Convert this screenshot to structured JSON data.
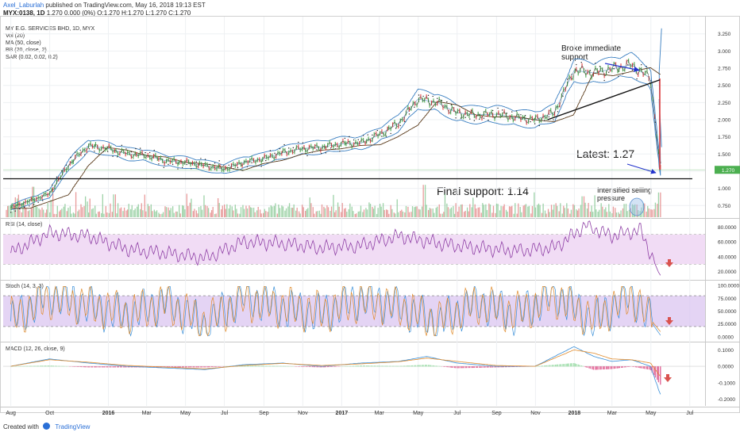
{
  "header": {
    "author": "Axel_Laburlah",
    "published_text": "published on TradingView.com, May 16, 2018 19:13 EST",
    "symbol": "MYX:0138, 1D",
    "ohlc": "1.270 0.000 (0%) O:1.270 H:1.270 L:1.270 C:1.270"
  },
  "footer": {
    "created_with": "Created with",
    "brand": "TradingView"
  },
  "colors": {
    "price_line": "#3a3a3a",
    "candle_up": "#4caf50",
    "candle_down": "#e04040",
    "bollinger": "#3a7fc1",
    "ma": "#5a3a1a",
    "sar": "#222222",
    "rsi_line": "#8e3fa5",
    "rsi_band": "#f1dcf5",
    "stoch_k": "#3a8fd8",
    "stoch_d": "#e08a2a",
    "stoch_band": "#d9c2f0",
    "macd_line": "#3a8fd8",
    "signal_line": "#e08a2a",
    "hist_pos": "#a5e0b0",
    "hist_neg": "#e26b9a",
    "annotation_blue": "#2233cc",
    "arrow_red": "#d9534f",
    "last_price_tag": "#4caf50",
    "vol_up": "#7cc38a",
    "vol_down": "#e07a7a"
  },
  "price_panel": {
    "indicators": [
      "MY E.G. SERVICES BHD, 1D, MYX",
      "Vol (20)",
      "MA (50, close)",
      "BB (20, close, 2)",
      "SAR (0.02, 0.02, 0.2)"
    ],
    "last_price_label": "1.270"
  },
  "rsi_panel": {
    "title": "RSI (14, close)"
  },
  "stoch_panel": {
    "title": "Stoch (14, 3, 3)"
  },
  "macd_panel": {
    "title": "MACD (12, 26, close, 9)"
  },
  "annotations": {
    "final_support": "Final support: 1.14",
    "latest": "Latest: 1.27",
    "broke_line1": "Broke immediate",
    "broke_line2": "support",
    "intensified_line1": "Intensified selling",
    "intensified_line2": "pressure"
  },
  "chart_data": [
    {
      "type": "line",
      "title": "MY E.G. SERVICES BHD, 1D, MYX",
      "x_type": "date",
      "y_scale": "linear",
      "ylim": [
        0.58,
        3.42
      ],
      "y_ticks": [
        "3.250",
        "3.000",
        "2.750",
        "2.500",
        "2.250",
        "2.000",
        "1.750",
        "1.500",
        "1.250",
        "1.000",
        "0.750"
      ],
      "x_ticks": [
        "Aug",
        "Oct",
        "2016",
        "Mar",
        "May",
        "Jul",
        "Sep",
        "Nov",
        "2017",
        "Mar",
        "May",
        "Jul",
        "Sep",
        "Nov",
        "2018",
        "Mar",
        "May",
        "Jul"
      ],
      "x": [
        "2015-08-01",
        "2015-09-01",
        "2015-10-01",
        "2015-11-01",
        "2015-12-01",
        "2016-01-01",
        "2016-02-01",
        "2016-03-01",
        "2016-04-01",
        "2016-05-01",
        "2016-06-01",
        "2016-07-01",
        "2016-08-01",
        "2016-09-01",
        "2016-10-01",
        "2016-11-01",
        "2016-12-01",
        "2017-01-01",
        "2017-02-01",
        "2017-03-01",
        "2017-04-01",
        "2017-05-01",
        "2017-06-01",
        "2017-07-01",
        "2017-08-01",
        "2017-09-01",
        "2017-10-01",
        "2017-11-01",
        "2017-12-01",
        "2018-01-01",
        "2018-02-01",
        "2018-03-01",
        "2018-04-01",
        "2018-05-01",
        "2018-05-16"
      ],
      "series": [
        {
          "values": [
            0.72,
            0.82,
            0.92,
            1.35,
            1.62,
            1.58,
            1.5,
            1.48,
            1.4,
            1.38,
            1.33,
            1.28,
            1.38,
            1.43,
            1.52,
            1.58,
            1.6,
            1.65,
            1.66,
            1.78,
            1.95,
            2.3,
            2.25,
            2.1,
            2.07,
            2.08,
            2.03,
            2.0,
            2.1,
            2.72,
            2.68,
            2.74,
            2.8,
            2.6,
            1.27
          ]
        }
      ],
      "horizontal_lines": [
        {
          "label": "Final support",
          "value": 1.14
        }
      ],
      "trendline": {
        "from": [
          "2017-11-20",
          2.0
        ],
        "to": [
          "2018-05-15",
          2.58
        ]
      },
      "last_value": 1.27,
      "volume": {
        "ylim": [
          0,
          100
        ],
        "spikes": [
          [
            "2015-09-06",
            80
          ],
          [
            "2016-01-10",
            60
          ],
          [
            "2017-05-10",
            85
          ],
          [
            "2018-01-15",
            55
          ],
          [
            "2018-05-15",
            65
          ]
        ]
      }
    },
    {
      "type": "line",
      "title": "RSI (14, close)",
      "x_type": "date",
      "ylim": [
        10,
        90
      ],
      "band": [
        30,
        70
      ],
      "y_ticks": [
        "80.0000",
        "60.0000",
        "40.0000",
        "20.0000"
      ],
      "x": [
        "2015-08-01",
        "2015-10-01",
        "2015-12-01",
        "2016-02-01",
        "2016-04-01",
        "2016-06-01",
        "2016-08-01",
        "2016-10-01",
        "2016-12-01",
        "2017-02-01",
        "2017-04-01",
        "2017-06-01",
        "2017-08-01",
        "2017-10-01",
        "2017-12-01",
        "2018-01-20",
        "2018-03-01",
        "2018-04-15",
        "2018-05-01",
        "2018-05-16"
      ],
      "series": [
        {
          "values": [
            45,
            72,
            68,
            50,
            45,
            38,
            60,
            58,
            52,
            55,
            68,
            58,
            52,
            48,
            52,
            82,
            68,
            76,
            45,
            15
          ]
        }
      ]
    },
    {
      "type": "line",
      "title": "Stoch (14, 3, 3)",
      "x_type": "date",
      "ylim": [
        0,
        100
      ],
      "band": [
        20,
        80
      ],
      "y_ticks": [
        "100.0000",
        "75.0000",
        "50.0000",
        "25.0000",
        "0.0000"
      ],
      "x": [
        "2015-08-01",
        "2015-10-01",
        "2015-12-01",
        "2016-02-01",
        "2016-04-01",
        "2016-06-01",
        "2016-08-01",
        "2016-10-01",
        "2016-12-01",
        "2017-02-01",
        "2017-04-01",
        "2017-06-01",
        "2017-08-01",
        "2017-10-01",
        "2017-12-01",
        "2018-02-01",
        "2018-04-01",
        "2018-05-16"
      ],
      "series": [
        {
          "values": [
            30,
            85,
            60,
            40,
            70,
            20,
            80,
            55,
            45,
            75,
            60,
            25,
            70,
            40,
            85,
            30,
            85,
            3
          ]
        },
        {
          "values": [
            35,
            75,
            62,
            45,
            65,
            28,
            72,
            58,
            48,
            70,
            58,
            30,
            65,
            45,
            78,
            35,
            80,
            10
          ]
        }
      ]
    },
    {
      "type": "line",
      "title": "MACD (12, 26, close, 9)",
      "x_type": "date",
      "ylim": [
        -0.24,
        0.14
      ],
      "y_ticks": [
        "0.1000",
        "0.0000",
        "-0.1000",
        "-0.2000"
      ],
      "x": [
        "2015-08-01",
        "2015-10-01",
        "2015-12-01",
        "2016-02-01",
        "2016-04-01",
        "2016-06-01",
        "2016-08-01",
        "2016-10-01",
        "2016-12-01",
        "2017-02-01",
        "2017-04-01",
        "2017-05-15",
        "2017-07-01",
        "2017-09-01",
        "2017-11-01",
        "2018-01-01",
        "2018-02-01",
        "2018-03-01",
        "2018-04-01",
        "2018-05-01",
        "2018-05-16"
      ],
      "series": [
        {
          "values": [
            0.0,
            0.045,
            0.02,
            0.0,
            -0.01,
            -0.02,
            0.01,
            0.02,
            0.0,
            0.02,
            0.03,
            0.06,
            0.02,
            0.0,
            0.0,
            0.12,
            0.06,
            0.03,
            0.04,
            0.0,
            -0.17
          ]
        },
        {
          "values": [
            0.0,
            0.04,
            0.025,
            0.005,
            -0.005,
            -0.015,
            0.005,
            0.018,
            0.005,
            0.015,
            0.028,
            0.05,
            0.03,
            0.005,
            0.0,
            0.1,
            0.08,
            0.045,
            0.04,
            0.02,
            -0.06
          ]
        }
      ]
    }
  ]
}
